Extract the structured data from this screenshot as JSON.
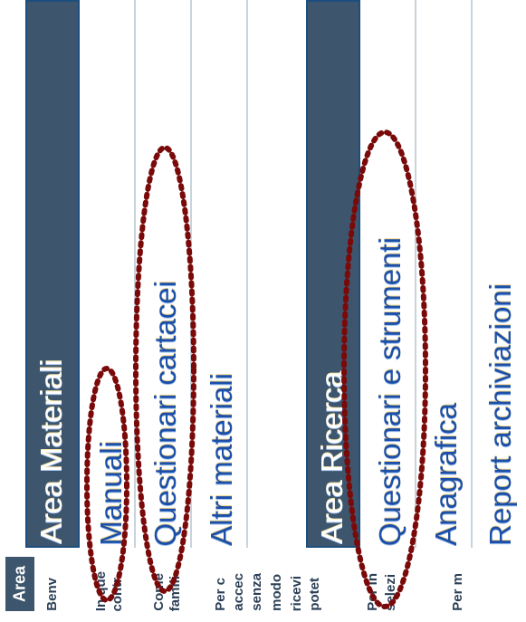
{
  "menu": {
    "area_materiali": "Area Materiali",
    "manuali": "Manuali",
    "questionari_cartacei": "Questionari cartacei",
    "altri_materiali": "Altri materiali",
    "area_ricerca": "Area Ricerca",
    "questionari_strumenti": "Questionari e strumenti",
    "anagrafica": "Anagrafica",
    "report_archiviazioni": "Report archiviazioni"
  },
  "content": {
    "area_chip": "Area",
    "lines": [
      "Benv",
      "In que",
      "contr",
      "Come",
      "famili",
      "Per c",
      "accec",
      "senza",
      "modo",
      "ricevi",
      "potet",
      "Per in",
      "selezi",
      "Per m"
    ]
  },
  "colors": {
    "tile": "#3d566e",
    "tile_border": "#1d4e7e",
    "link": "#1b4fa8",
    "annotation": "#7a0a0a"
  }
}
